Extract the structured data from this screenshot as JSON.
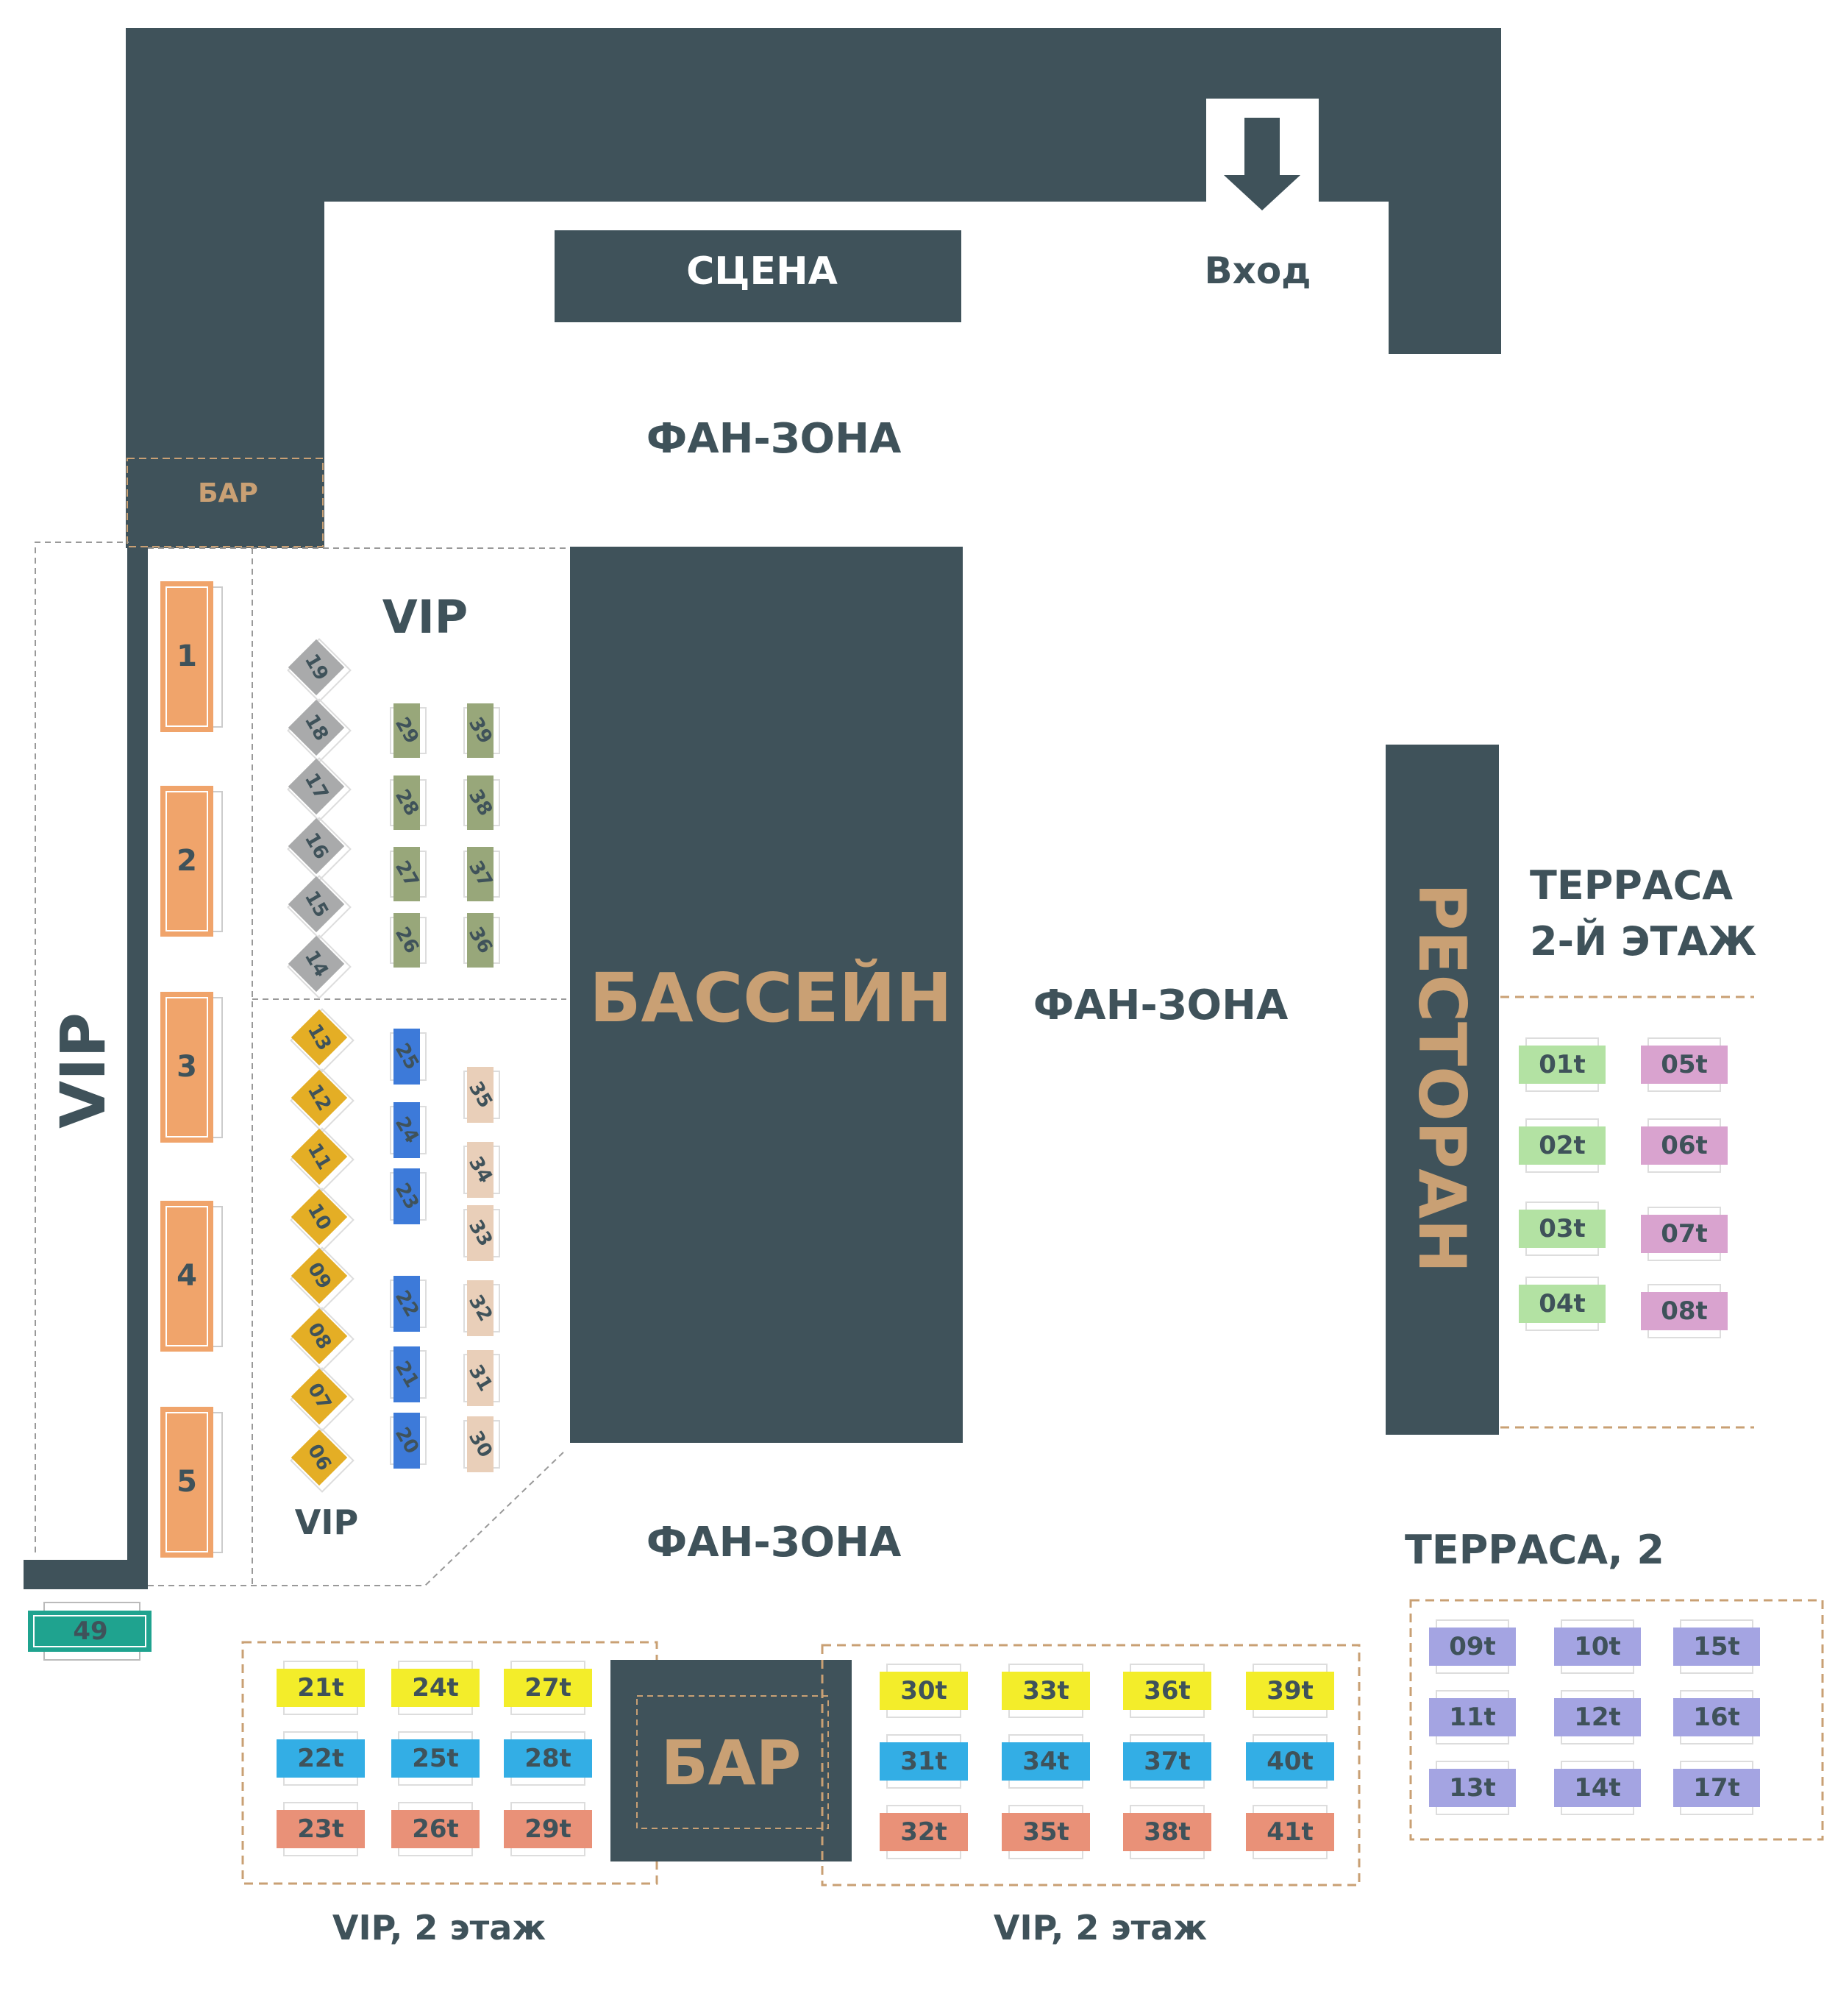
{
  "labels": {
    "stage": "СЦЕНА",
    "entrance": "Вход",
    "fan_zone_top": "ФАН-ЗОНА",
    "fan_zone_mid": "ФАН-ЗОНА",
    "fan_zone_bottom": "ФАН-ЗОНА",
    "bar_small": "БАР",
    "bar_big": "БАР",
    "pool": "БАССЕЙН",
    "restaurant": "РЕСТОРАН",
    "vip_vertical": "VIP",
    "vip_upper": "VIP",
    "vip_lower": "VIP",
    "terrace_line1": "ТЕРРАСА",
    "terrace_line2": "2-Й ЭТАЖ",
    "terrace2": "ТЕРРАСА, 2",
    "vip2_left": "VIP, 2 этаж",
    "vip2_right": "VIP, 2 этаж"
  },
  "colors": {
    "wall": "#3f525a",
    "pool_text": "#c9a074",
    "orange": "#f0a46b",
    "gray": "#a9aaab",
    "olive": "#98a77a",
    "gold": "#e4ae25",
    "blue": "#3d7ad9",
    "beige": "#e9cfb9",
    "yellow": "#f3ed2a",
    "sky": "#33aee5",
    "salmon": "#e99178",
    "green": "#b3e2a3",
    "pink": "#d9a3cf",
    "lavender": "#a4a4e2",
    "teal": "#1fa38f",
    "dash": "#c9a074"
  },
  "tables": {
    "big_vip": [
      "1",
      "2",
      "3",
      "4",
      "5"
    ],
    "gray_diamonds": [
      "19",
      "18",
      "17",
      "16",
      "15",
      "14"
    ],
    "olive": [
      "29",
      "28",
      "27",
      "26"
    ],
    "olive_right": [
      "39",
      "38",
      "37",
      "36"
    ],
    "gold_diamonds": [
      "13",
      "12",
      "11",
      "10",
      "09",
      "08",
      "07",
      "06"
    ],
    "blue": [
      "25",
      "24",
      "23",
      "22",
      "21",
      "20"
    ],
    "beige": [
      "35",
      "34",
      "33",
      "32",
      "31",
      "30"
    ],
    "terrace_green": [
      "01t",
      "02t",
      "03t",
      "04t"
    ],
    "terrace_pink": [
      "05t",
      "06t",
      "07t",
      "08t"
    ],
    "terrace2": [
      [
        "09t",
        "10t",
        "15t"
      ],
      [
        "11t",
        "12t",
        "16t"
      ],
      [
        "13t",
        "14t",
        "17t"
      ]
    ],
    "vip2_left": [
      [
        "21t",
        "24t",
        "27t"
      ],
      [
        "22t",
        "25t",
        "28t"
      ],
      [
        "23t",
        "26t",
        "29t"
      ]
    ],
    "vip2_right": [
      [
        "30t",
        "33t",
        "36t",
        "39t"
      ],
      [
        "31t",
        "34t",
        "37t",
        "40t"
      ],
      [
        "32t",
        "35t",
        "38t",
        "41t"
      ]
    ],
    "single": "49"
  }
}
